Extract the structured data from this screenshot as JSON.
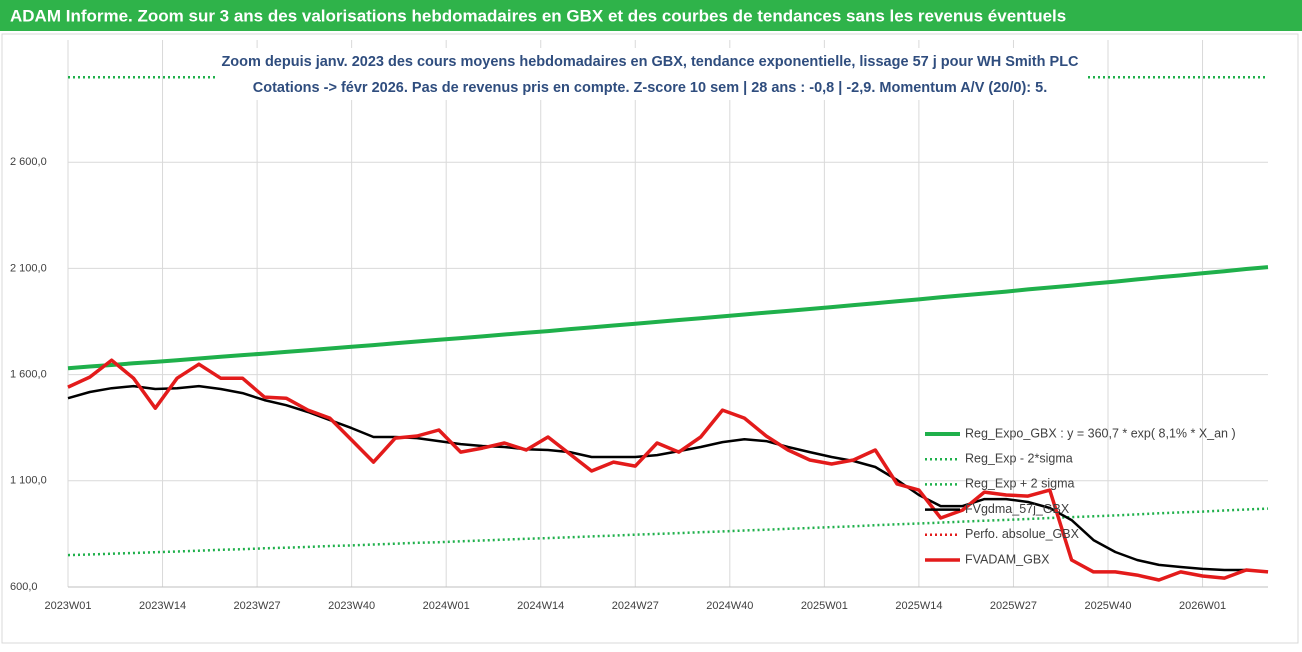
{
  "header": {
    "title": "ADAM Informe. Zoom sur 3 ans des valorisations hebdomadaires en GBX et des courbes de tendances sans les revenus éventuels"
  },
  "chart_data": {
    "type": "line",
    "title": "Zoom depuis janv. 2023 des cours moyens hebdomadaires en GBX, tendance exponentielle, lissage 57 j pour WH Smith PLC",
    "subtitle": "Cotations -> févr 2026.  Pas de revenus pris en compte. Z-score 10 sem | 28 ans : -0,8 | -2,9. Momentum A/V (20/0): 5.",
    "x": [
      0,
      3,
      6,
      9,
      12,
      15,
      18,
      21,
      24,
      27,
      30,
      33,
      36,
      39,
      42,
      45,
      48,
      51,
      54,
      57,
      60,
      63,
      66,
      69,
      72,
      75,
      78,
      81,
      84,
      87,
      90,
      93,
      96,
      99,
      102,
      105,
      108,
      111,
      114,
      117,
      120,
      123,
      126,
      129,
      132,
      135,
      138,
      141,
      144,
      147,
      150,
      153,
      156,
      159,
      162,
      165
    ],
    "xlim": [
      0,
      165
    ],
    "xticks": [
      {
        "value": 0,
        "label": "2023W01"
      },
      {
        "value": 13,
        "label": "2023W14"
      },
      {
        "value": 26,
        "label": "2023W27"
      },
      {
        "value": 39,
        "label": "2023W40"
      },
      {
        "value": 52,
        "label": "2024W01"
      },
      {
        "value": 65,
        "label": "2024W14"
      },
      {
        "value": 78,
        "label": "2024W27"
      },
      {
        "value": 91,
        "label": "2024W40"
      },
      {
        "value": 104,
        "label": "2025W01"
      },
      {
        "value": 117,
        "label": "2025W14"
      },
      {
        "value": 130,
        "label": "2025W27"
      },
      {
        "value": 143,
        "label": "2025W40"
      },
      {
        "value": 156,
        "label": "2026W01"
      }
    ],
    "ylim": [
      600,
      3100
    ],
    "yticks": [
      {
        "value": 600,
        "label": "600,0"
      },
      {
        "value": 1100,
        "label": "1 100,0"
      },
      {
        "value": 1600,
        "label": "1 600,0"
      },
      {
        "value": 2100,
        "label": "2 100,0"
      },
      {
        "value": 2600,
        "label": "2 600,0"
      }
    ],
    "grid": true,
    "legend": "right",
    "series": [
      {
        "name": "Reg_Expo_GBX : y = 360,7 * exp( 8,1% *  X_an )",
        "color": "#1fb04b",
        "style": "solid",
        "values": [
          1630,
          1638,
          1645,
          1653,
          1660,
          1668,
          1676,
          1684,
          1692,
          1699,
          1707,
          1715,
          1723,
          1731,
          1739,
          1748,
          1756,
          1764,
          1772,
          1780,
          1789,
          1797,
          1805,
          1814,
          1822,
          1831,
          1839,
          1848,
          1857,
          1865,
          1874,
          1883,
          1892,
          1900,
          1909,
          1918,
          1927,
          1936,
          1945,
          1954,
          1964,
          1973,
          1982,
          1991,
          2001,
          2010,
          2019,
          2029,
          2038,
          2048,
          2058,
          2067,
          2077,
          2087,
          2097,
          2106
        ]
      },
      {
        "name": "Reg_Exp - 2*sigma",
        "color": "#1fb04b",
        "style": "dotted",
        "values": [
          750,
          753,
          757,
          760,
          764,
          767,
          771,
          775,
          778,
          782,
          785,
          789,
          793,
          796,
          800,
          804,
          808,
          811,
          815,
          819,
          823,
          827,
          830,
          834,
          838,
          842,
          846,
          850,
          854,
          858,
          862,
          866,
          870,
          874,
          878,
          882,
          886,
          891,
          895,
          899,
          903,
          908,
          912,
          916,
          920,
          925,
          929,
          933,
          937,
          942,
          947,
          951,
          955,
          960,
          965,
          969
        ]
      },
      {
        "name": "Reg_Exp + 2 sigma",
        "color": "#1fb04b",
        "style": "dotted",
        "values": [
          3000,
          3000,
          3000,
          3000,
          3000,
          3000,
          3000,
          3000,
          3000,
          3000,
          3000,
          3000,
          3000,
          3000,
          3000,
          3000,
          3000,
          3000,
          3000,
          3000,
          3000,
          3000,
          3000,
          3000,
          3000,
          3000,
          3000,
          3000,
          3000,
          3000,
          3000,
          3000,
          3000,
          3000,
          3000,
          3000,
          3000,
          3000,
          3000,
          3000,
          3000,
          3000,
          3000,
          3000,
          3000,
          3000,
          3000,
          3000,
          3000,
          3000,
          3000,
          3000,
          3000,
          3000,
          3000,
          3000
        ]
      },
      {
        "name": "FVgdma_57j_GBX",
        "color": "#000000",
        "style": "solid",
        "values": [
          1489,
          1518,
          1536,
          1546,
          1532,
          1536,
          1546,
          1532,
          1513,
          1480,
          1456,
          1424,
          1386,
          1348,
          1306,
          1306,
          1301,
          1287,
          1273,
          1264,
          1259,
          1249,
          1245,
          1235,
          1212,
          1212,
          1212,
          1221,
          1240,
          1259,
          1282,
          1296,
          1287,
          1259,
          1235,
          1212,
          1193,
          1165,
          1104,
          1033,
          981,
          981,
          1014,
          1014,
          1000,
          972,
          915,
          821,
          765,
          727,
          704,
          694,
          685,
          680,
          680,
          671
        ]
      },
      {
        "name": "Perfo. absolue_GBX",
        "color": "#e31b1b",
        "style": "dotted",
        "values": [
          1541,
          1588,
          1668,
          1583,
          1442,
          1583,
          1649,
          1583,
          1583,
          1494,
          1489,
          1433,
          1395,
          1292,
          1188,
          1301,
          1311,
          1339,
          1235,
          1254,
          1278,
          1245,
          1306,
          1226,
          1146,
          1188,
          1169,
          1278,
          1235,
          1306,
          1433,
          1395,
          1311,
          1245,
          1198,
          1179,
          1198,
          1245,
          1085,
          1056,
          925,
          962,
          1047,
          1033,
          1028,
          1056,
          727,
          671,
          671,
          656,
          633,
          671,
          652,
          642,
          680,
          671
        ]
      },
      {
        "name": "FVADAM_GBX",
        "color": "#e31b1b",
        "style": "solid",
        "values": [
          1541,
          1588,
          1668,
          1583,
          1442,
          1583,
          1649,
          1583,
          1583,
          1494,
          1489,
          1433,
          1395,
          1292,
          1188,
          1301,
          1311,
          1339,
          1235,
          1254,
          1278,
          1245,
          1306,
          1226,
          1146,
          1188,
          1169,
          1278,
          1235,
          1306,
          1433,
          1395,
          1311,
          1245,
          1198,
          1179,
          1198,
          1245,
          1085,
          1056,
          925,
          962,
          1047,
          1033,
          1028,
          1056,
          727,
          671,
          671,
          656,
          633,
          671,
          652,
          642,
          680,
          671
        ]
      }
    ]
  }
}
